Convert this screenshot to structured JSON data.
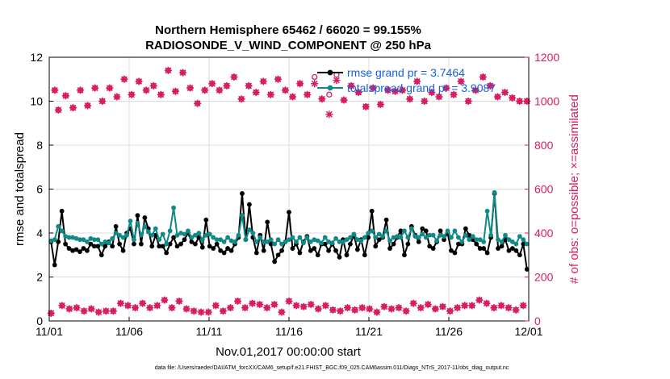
{
  "chart_data": {
    "type": "line",
    "title_line1": "Northern Hemisphere 65462 / 66020 = 99.155%",
    "title_line2": "RADIOSONDE_V_WIND_COMPONENT @ 250 hPa",
    "xlabel": "Nov.01,2017 00:00:00 start",
    "ylabel_left": "rmse and totalspread",
    "ylabel_right": "# of obs: o=possible; ×=assimilated",
    "footer": "data file: /Users/raeder/DAI/ATM_forcXX/CAM6_setup/f.e21.FHIST_BGC.f09_025.CAM6assim.011/Diags_NTrS_2017-11/obs_diag_output.nc",
    "x_tick_labels": [
      "11/01",
      "11/06",
      "11/11",
      "11/16",
      "11/21",
      "11/26",
      "12/01"
    ],
    "x_tick_days": [
      0,
      5,
      10,
      15,
      20,
      25,
      30
    ],
    "xlim_days": [
      0,
      30
    ],
    "ylim_left": [
      0,
      12
    ],
    "yticks_left": [
      "0",
      "2",
      "4",
      "6",
      "8",
      "10",
      "12"
    ],
    "ylim_right": [
      0,
      1200
    ],
    "yticks_right": [
      "0",
      "200",
      "400",
      "600",
      "800",
      "1000",
      "1200"
    ],
    "colors": {
      "rmse": "#000000",
      "spread": "#0f8a87",
      "obs": "#d81b60",
      "legend_text": "#1560e0",
      "grid": "#dcdcdc"
    },
    "legend": [
      {
        "series": "rmse",
        "label": "rmse grand pr = 3.7464"
      },
      {
        "series": "spread",
        "label": "totalspread grand pr = 3.9087"
      }
    ],
    "series": [
      {
        "name": "rmse",
        "axis": "left",
        "values": [
          3.6,
          2.55,
          3.6,
          5.0,
          3.5,
          3.3,
          3.2,
          3.25,
          3.15,
          3.3,
          3.2,
          3.5,
          3.4,
          3.4,
          3.0,
          3.4,
          3.6,
          3.4,
          4.3,
          3.5,
          3.2,
          4.0,
          4.2,
          3.5,
          4.8,
          3.5,
          4.7,
          4.2,
          3.4,
          3.9,
          3.4,
          3.4,
          3.1,
          3.5,
          3.8,
          3.4,
          3.5,
          3.7,
          4.0,
          3.6,
          3.5,
          3.8,
          3.35,
          4.6,
          3.4,
          3.3,
          3.5,
          3.2,
          3.1,
          3.3,
          3.2,
          3.5,
          3.8,
          5.8,
          3.7,
          5.3,
          3.8,
          3.1,
          3.9,
          3.2,
          4.5,
          3.5,
          2.7,
          3.0,
          3.2,
          3.6,
          4.95,
          3.3,
          3.5,
          3.1,
          3.6,
          3.85,
          3.2,
          3.3,
          3.0,
          3.5,
          3.5,
          3.2,
          3.5,
          3.2,
          2.9,
          3.7,
          3.0,
          3.5,
          3.9,
          3.25,
          3.7,
          3.0,
          3.8,
          5.0,
          3.4,
          3.7,
          3.8,
          4.6,
          3.3,
          3.5,
          3.8,
          4.1,
          3.0,
          3.5,
          4.3,
          3.9,
          3.6,
          4.2,
          4.1,
          3.4,
          3.3,
          3.6,
          4.1,
          3.7,
          4.0,
          3.2,
          3.1,
          3.5,
          3.5,
          4.2,
          3.9,
          3.7,
          3.5,
          3.3,
          3.3,
          3.1,
          3.8,
          5.8,
          3.3,
          3.4,
          3.7,
          3.2,
          3.3,
          3.2,
          3.0,
          3.5,
          2.35
        ]
      },
      {
        "name": "spread",
        "axis": "left",
        "values": [
          3.65,
          3.7,
          4.3,
          4.1,
          3.85,
          3.8,
          3.8,
          3.75,
          3.7,
          3.7,
          3.6,
          3.75,
          3.7,
          3.7,
          3.5,
          3.6,
          3.55,
          3.75,
          4.0,
          3.9,
          3.8,
          3.9,
          4.55,
          3.7,
          4.45,
          3.9,
          4.3,
          4.05,
          3.9,
          4.2,
          3.7,
          3.95,
          3.5,
          4.1,
          5.15,
          3.9,
          4.0,
          3.95,
          4.1,
          3.8,
          3.9,
          4.0,
          3.7,
          3.9,
          3.95,
          3.8,
          3.7,
          3.7,
          3.6,
          3.8,
          3.65,
          3.6,
          3.9,
          4.8,
          3.7,
          4.15,
          4.0,
          3.6,
          3.8,
          3.6,
          3.6,
          3.7,
          3.5,
          3.7,
          3.5,
          3.6,
          3.7,
          3.8,
          3.6,
          3.8,
          3.55,
          3.8,
          3.6,
          3.7,
          3.65,
          3.55,
          3.8,
          3.6,
          3.55,
          3.75,
          3.6,
          3.6,
          3.7,
          3.8,
          3.95,
          3.7,
          3.65,
          3.8,
          4.0,
          4.1,
          3.8,
          3.95,
          3.85,
          4.1,
          3.65,
          3.8,
          3.85,
          3.8,
          4.1,
          3.8,
          4.2,
          3.85,
          3.8,
          3.95,
          3.8,
          3.9,
          3.9,
          3.65,
          3.9,
          3.85,
          4.1,
          3.8,
          4.1,
          3.8,
          3.6,
          3.9,
          3.7,
          3.85,
          3.7,
          3.7,
          3.6,
          5.0,
          3.9,
          5.85,
          3.7,
          3.6,
          3.9,
          3.7,
          3.6,
          3.5,
          3.85,
          3.7,
          3.5
        ]
      },
      {
        "name": "possible",
        "axis": "right",
        "marker": "circle",
        "values": [
          35,
          1050,
          960,
          70,
          1025,
          55,
          970,
          60,
          1050,
          45,
          980,
          55,
          1060,
          40,
          1000,
          45,
          1060,
          45,
          1020,
          80,
          1100,
          70,
          1030,
          60,
          1090,
          80,
          1050,
          60,
          1070,
          70,
          1030,
          95,
          1140,
          60,
          1045,
          90,
          1130,
          55,
          1060,
          45,
          990,
          40,
          1050,
          40,
          1080,
          70,
          1050,
          45,
          1070,
          60,
          1110,
          90,
          1010,
          60,
          1070,
          80,
          1040,
          75,
          1090,
          60,
          1030,
          75,
          1100,
          40,
          1050,
          90,
          1020,
          70,
          1080,
          65,
          1030,
          75,
          1110,
          55,
          1010,
          70,
          1030,
          50,
          1120,
          45,
          1005,
          60,
          1070,
          50,
          1040,
          60,
          975,
          55,
          1060,
          40,
          985,
          65,
          1050,
          55,
          1045,
          60,
          1050,
          45,
          1010,
          80,
          1090,
          60,
          1000,
          75,
          1040,
          55,
          1020,
          65,
          1060,
          45,
          1030,
          60,
          1090,
          70,
          1000,
          70,
          1050,
          95,
          1110,
          80,
          1070,
          60,
          1020,
          70,
          1040,
          60,
          1015,
          50,
          1000,
          70,
          1000
        ]
      },
      {
        "name": "assimilated",
        "axis": "right",
        "marker": "cross",
        "values": [
          35,
          1050,
          960,
          70,
          1025,
          55,
          970,
          60,
          1050,
          45,
          980,
          55,
          1060,
          40,
          1000,
          45,
          1060,
          45,
          1020,
          80,
          1100,
          70,
          1030,
          60,
          1090,
          80,
          1050,
          60,
          1070,
          70,
          1030,
          95,
          1140,
          60,
          1045,
          90,
          1130,
          55,
          1060,
          45,
          990,
          40,
          1050,
          40,
          1080,
          70,
          1050,
          45,
          1070,
          60,
          1110,
          90,
          1010,
          60,
          1070,
          80,
          1040,
          75,
          1090,
          60,
          1030,
          75,
          1100,
          40,
          1050,
          90,
          1020,
          70,
          1080,
          65,
          1030,
          75,
          1080,
          55,
          1010,
          70,
          940,
          50,
          1095,
          45,
          1005,
          60,
          1070,
          50,
          1040,
          60,
          975,
          55,
          1060,
          40,
          985,
          65,
          1050,
          55,
          1045,
          60,
          1050,
          45,
          1010,
          80,
          1090,
          60,
          1000,
          75,
          1040,
          55,
          1020,
          65,
          1060,
          45,
          1030,
          60,
          1090,
          70,
          1000,
          70,
          1050,
          95,
          1110,
          80,
          1070,
          60,
          1020,
          70,
          1040,
          60,
          1015,
          50,
          1000,
          70,
          1000
        ]
      }
    ]
  }
}
